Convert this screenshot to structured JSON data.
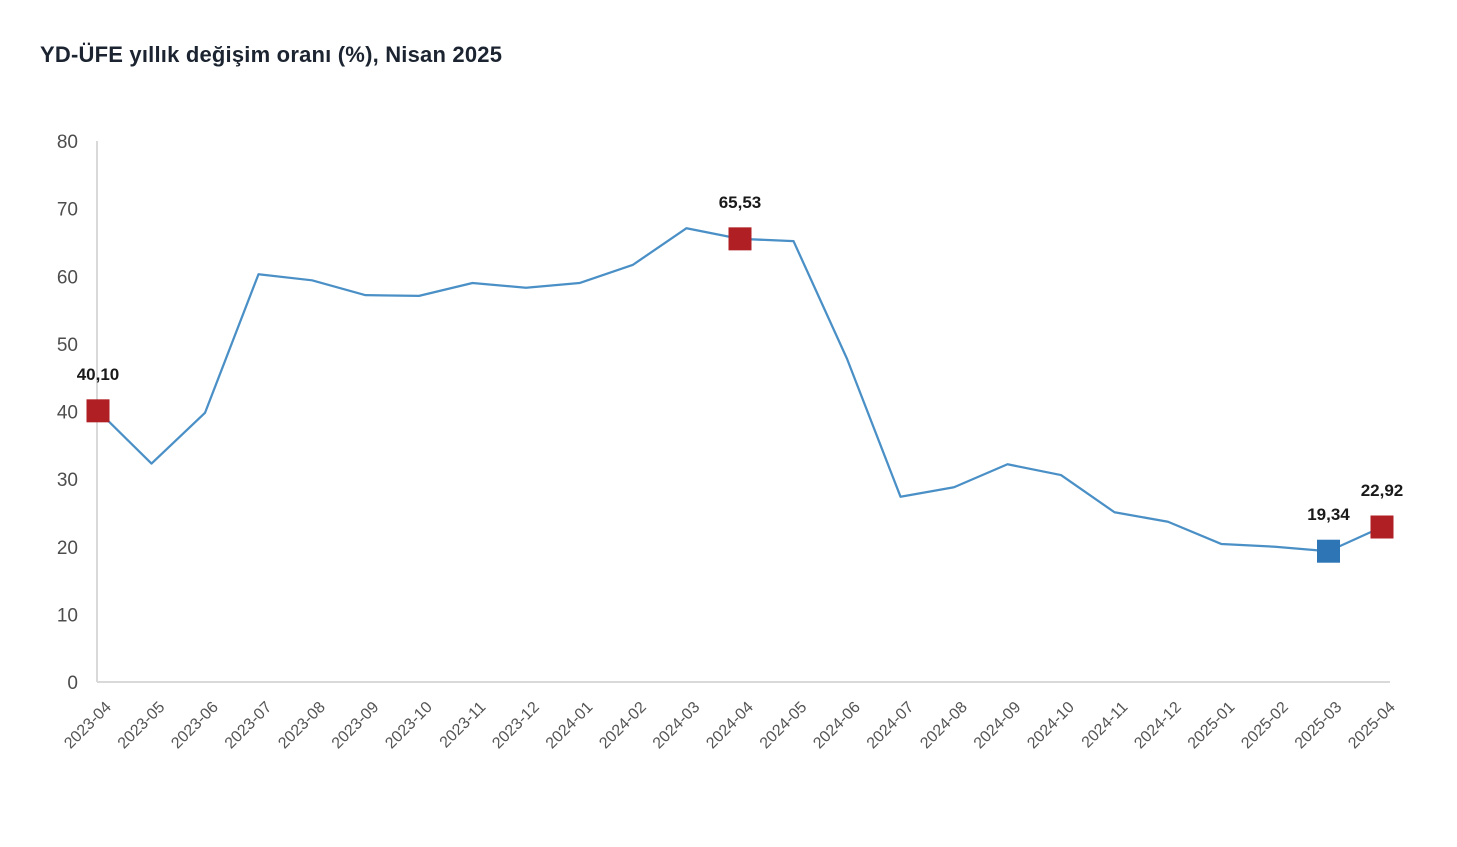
{
  "title": "YD-ÜFE yıllık değişim oranı (%), Nisan 2025",
  "colors": {
    "title": "#1b2430",
    "line": "#4a90c6",
    "marker_red": "#b01f24",
    "marker_blue": "#2e75b6",
    "axis": "#d9d9d9",
    "tick_label": "#4d4d4d",
    "data_label": "#1a1a1a",
    "background": "#ffffff"
  },
  "chart_data": {
    "type": "line",
    "title": "YD-ÜFE yıllık değişim oranı (%), Nisan 2025",
    "xlabel": "",
    "ylabel": "",
    "ylim": [
      0,
      80
    ],
    "yticks": [
      0,
      10,
      20,
      30,
      40,
      50,
      60,
      70,
      80
    ],
    "grid": false,
    "legend_position": "none",
    "x": [
      "2023-04",
      "2023-05",
      "2023-06",
      "2023-07",
      "2023-08",
      "2023-09",
      "2023-10",
      "2023-11",
      "2023-12",
      "2024-01",
      "2024-02",
      "2024-03",
      "2024-04",
      "2024-05",
      "2024-06",
      "2024-07",
      "2024-08",
      "2024-09",
      "2024-10",
      "2024-11",
      "2024-12",
      "2025-01",
      "2025-02",
      "2025-03",
      "2025-04"
    ],
    "values": [
      40.1,
      32.3,
      39.8,
      60.3,
      59.4,
      57.2,
      57.1,
      59.0,
      58.3,
      59.0,
      61.7,
      67.1,
      65.53,
      65.2,
      47.8,
      27.4,
      28.8,
      32.2,
      30.6,
      25.1,
      23.7,
      20.4,
      20.0,
      19.34,
      22.92
    ],
    "annotations": [
      {
        "x": "2023-04",
        "value": 40.1,
        "label": "40,10",
        "marker": "square",
        "marker_color": "red"
      },
      {
        "x": "2024-04",
        "value": 65.53,
        "label": "65,53",
        "marker": "square",
        "marker_color": "red"
      },
      {
        "x": "2025-03",
        "value": 19.34,
        "label": "19,34",
        "marker": "square",
        "marker_color": "blue"
      },
      {
        "x": "2025-04",
        "value": 22.92,
        "label": "22,92",
        "marker": "square",
        "marker_color": "red"
      }
    ]
  }
}
